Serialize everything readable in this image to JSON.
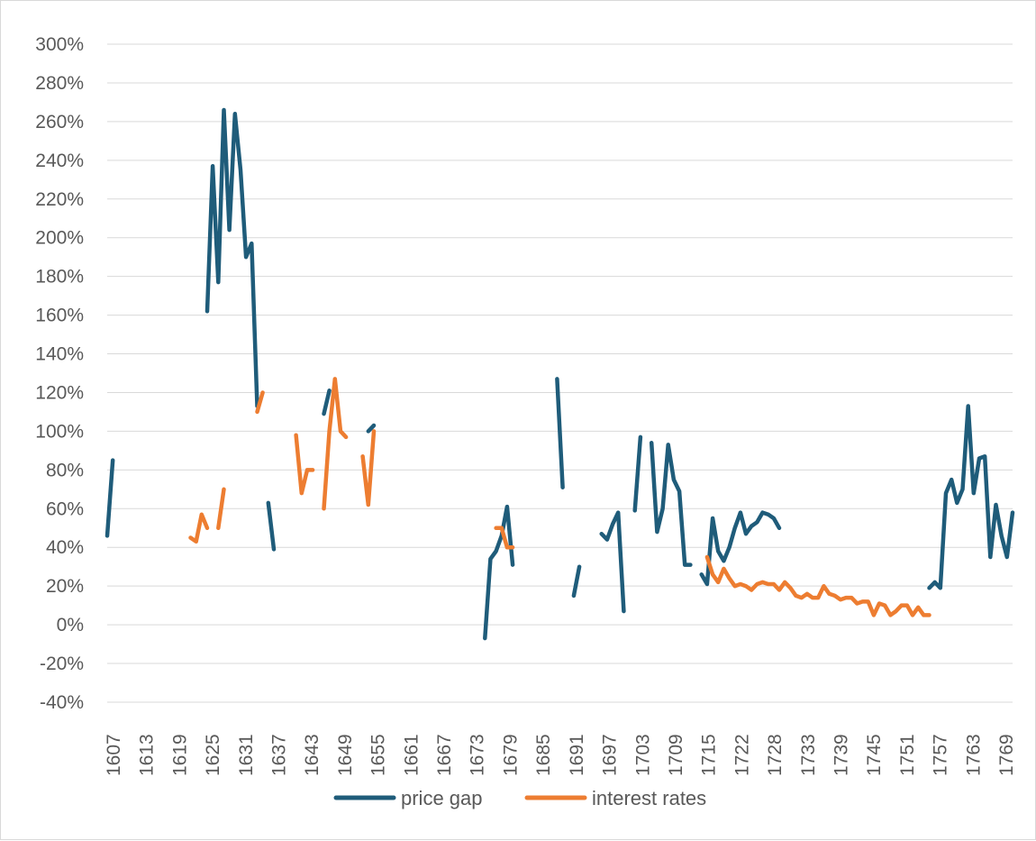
{
  "chart_data": {
    "type": "line",
    "title": "",
    "xlabel": "",
    "ylabel": "",
    "ylim": [
      -0.4,
      3.0
    ],
    "y_ticks": [
      -0.4,
      -0.2,
      0,
      0.2,
      0.4,
      0.6,
      0.8,
      1.0,
      1.2,
      1.4,
      1.6,
      1.8,
      2.0,
      2.2,
      2.4,
      2.6,
      2.8,
      3.0
    ],
    "y_tick_labels": [
      "-40%",
      "-20%",
      "0%",
      "20%",
      "40%",
      "60%",
      "80%",
      "100%",
      "120%",
      "140%",
      "160%",
      "180%",
      "200%",
      "220%",
      "240%",
      "260%",
      "280%",
      "300%"
    ],
    "x_tick_labels": [
      "1607",
      "1613",
      "1619",
      "1625",
      "1631",
      "1637",
      "1643",
      "1649",
      "1655",
      "1661",
      "1667",
      "1673",
      "1679",
      "1685",
      "1691",
      "1697",
      "1703",
      "1709",
      "1715",
      "1722",
      "1728",
      "1733",
      "1739",
      "1745",
      "1751",
      "1757",
      "1763",
      "1769"
    ],
    "grid": "horizontal",
    "legend": "bottom",
    "series": [
      {
        "name": "price gap",
        "color": "#1f5c7a",
        "segments": [
          [
            [
              1607,
              0.46
            ],
            [
              1608,
              0.85
            ]
          ],
          [
            [
              1625,
              1.62
            ],
            [
              1626,
              2.37
            ],
            [
              1627,
              1.77
            ],
            [
              1628,
              2.66
            ],
            [
              1629,
              2.04
            ],
            [
              1630,
              2.64
            ],
            [
              1631,
              2.35
            ],
            [
              1632,
              1.9
            ],
            [
              1633,
              1.97
            ],
            [
              1634,
              1.13
            ]
          ],
          [
            [
              1636,
              0.63
            ],
            [
              1637,
              0.39
            ]
          ],
          [
            [
              1646,
              1.09
            ],
            [
              1647,
              1.21
            ]
          ],
          [
            [
              1654,
              1.0
            ],
            [
              1655,
              1.03
            ]
          ],
          [
            [
              1675,
              -0.07
            ],
            [
              1676,
              0.34
            ],
            [
              1677,
              0.38
            ],
            [
              1678,
              0.46
            ],
            [
              1679,
              0.61
            ],
            [
              1680,
              0.31
            ]
          ],
          [
            [
              1688,
              1.27
            ],
            [
              1689,
              0.71
            ]
          ],
          [
            [
              1691,
              0.15
            ],
            [
              1692,
              0.3
            ]
          ],
          [
            [
              1696,
              0.47
            ],
            [
              1697,
              0.44
            ],
            [
              1698,
              0.52
            ],
            [
              1699,
              0.58
            ],
            [
              1700,
              0.07
            ]
          ],
          [
            [
              1702,
              0.59
            ],
            [
              1703,
              0.97
            ]
          ],
          [
            [
              1705,
              0.94
            ],
            [
              1706,
              0.48
            ],
            [
              1707,
              0.6
            ],
            [
              1708,
              0.93
            ],
            [
              1709,
              0.75
            ],
            [
              1710,
              0.69
            ],
            [
              1711,
              0.31
            ],
            [
              1712,
              0.31
            ]
          ],
          [
            [
              1714,
              0.26
            ],
            [
              1715,
              0.21
            ],
            [
              1716,
              0.55
            ],
            [
              1717,
              0.38
            ],
            [
              1718,
              0.33
            ],
            [
              1719,
              0.4
            ],
            [
              1720,
              0.5
            ],
            [
              1721,
              0.58
            ],
            [
              1722,
              0.47
            ],
            [
              1723,
              0.51
            ],
            [
              1724,
              0.53
            ],
            [
              1725,
              0.58
            ],
            [
              1726,
              0.57
            ],
            [
              1727,
              0.55
            ],
            [
              1728,
              0.5
            ]
          ],
          [
            [
              1755,
              0.19
            ],
            [
              1756,
              0.22
            ],
            [
              1757,
              0.19
            ],
            [
              1758,
              0.68
            ],
            [
              1759,
              0.75
            ],
            [
              1760,
              0.63
            ],
            [
              1761,
              0.7
            ],
            [
              1762,
              1.13
            ],
            [
              1763,
              0.68
            ],
            [
              1764,
              0.86
            ],
            [
              1765,
              0.87
            ],
            [
              1766,
              0.35
            ],
            [
              1767,
              0.62
            ],
            [
              1768,
              0.46
            ],
            [
              1769,
              0.35
            ],
            [
              1770,
              0.58
            ]
          ]
        ]
      },
      {
        "name": "interest rates",
        "color": "#ed7d31",
        "segments": [
          [
            [
              1622,
              0.45
            ],
            [
              1623,
              0.43
            ],
            [
              1624,
              0.57
            ],
            [
              1625,
              0.5
            ]
          ],
          [
            [
              1627,
              0.5
            ],
            [
              1628,
              0.7
            ]
          ],
          [
            [
              1634,
              1.1
            ],
            [
              1635,
              1.2
            ]
          ],
          [
            [
              1641,
              0.98
            ],
            [
              1642,
              0.68
            ],
            [
              1643,
              0.8
            ],
            [
              1644,
              0.8
            ]
          ],
          [
            [
              1646,
              0.6
            ],
            [
              1647,
              1.0
            ],
            [
              1648,
              1.27
            ],
            [
              1649,
              1.0
            ],
            [
              1650,
              0.97
            ]
          ],
          [
            [
              1653,
              0.87
            ],
            [
              1654,
              0.62
            ],
            [
              1655,
              1.0
            ]
          ],
          [
            [
              1677,
              0.5
            ],
            [
              1678,
              0.5
            ],
            [
              1679,
              0.4
            ],
            [
              1680,
              0.4
            ]
          ],
          [
            [
              1715,
              0.35
            ],
            [
              1716,
              0.26
            ],
            [
              1717,
              0.22
            ],
            [
              1718,
              0.29
            ],
            [
              1719,
              0.24
            ],
            [
              1720,
              0.2
            ],
            [
              1721,
              0.21
            ],
            [
              1722,
              0.2
            ],
            [
              1723,
              0.18
            ],
            [
              1724,
              0.21
            ],
            [
              1725,
              0.22
            ],
            [
              1726,
              0.21
            ],
            [
              1727,
              0.21
            ],
            [
              1728,
              0.18
            ],
            [
              1729,
              0.22
            ],
            [
              1730,
              0.19
            ],
            [
              1731,
              0.15
            ],
            [
              1732,
              0.14
            ],
            [
              1733,
              0.16
            ],
            [
              1734,
              0.14
            ],
            [
              1735,
              0.14
            ],
            [
              1736,
              0.2
            ],
            [
              1737,
              0.16
            ],
            [
              1738,
              0.15
            ],
            [
              1739,
              0.13
            ],
            [
              1740,
              0.14
            ],
            [
              1741,
              0.14
            ],
            [
              1742,
              0.11
            ],
            [
              1743,
              0.12
            ],
            [
              1744,
              0.12
            ],
            [
              1745,
              0.05
            ],
            [
              1746,
              0.11
            ],
            [
              1747,
              0.1
            ],
            [
              1748,
              0.05
            ],
            [
              1749,
              0.07
            ],
            [
              1750,
              0.1
            ],
            [
              1751,
              0.1
            ],
            [
              1752,
              0.05
            ],
            [
              1753,
              0.09
            ],
            [
              1754,
              0.05
            ],
            [
              1755,
              0.05
            ]
          ]
        ]
      }
    ]
  }
}
